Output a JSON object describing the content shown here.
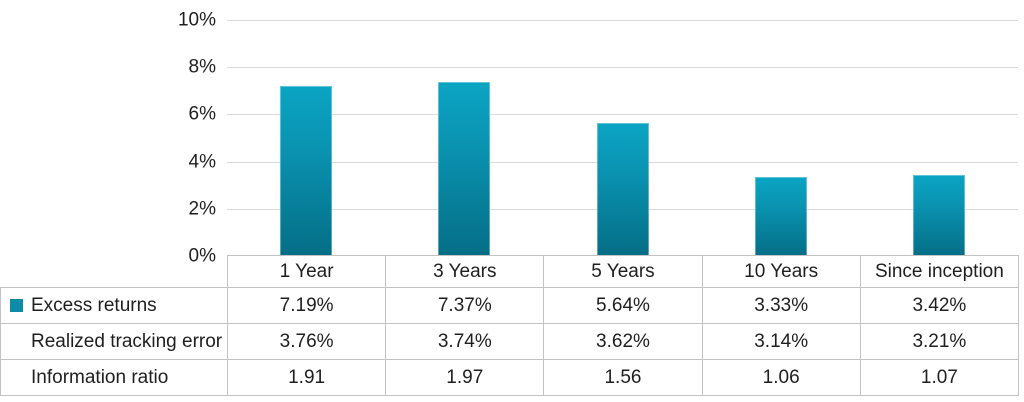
{
  "chart_data": {
    "type": "bar",
    "title": "",
    "categories": [
      "1 Year",
      "3 Years",
      "5 Years",
      "10 Years",
      "Since inception"
    ],
    "series": [
      {
        "name": "Excess returns",
        "values": [
          7.19,
          7.37,
          5.64,
          3.33,
          3.42
        ]
      }
    ],
    "xlabel": "",
    "ylabel": "",
    "ylim": [
      0,
      10
    ],
    "ytick_labels": [
      "10%",
      "8%",
      "6%",
      "4%",
      "2%",
      "0%"
    ],
    "grid": true,
    "legend_position": "table-left",
    "colors": {
      "bar_top": "#0ba4c3",
      "bar_bottom": "#056e86",
      "legend_swatch": "#0d8ca8",
      "gridline": "#d9d9d9",
      "table_border": "#c3c3c3",
      "text": "#1f1f1f"
    }
  },
  "table": {
    "column_headers": [
      "1 Year",
      "3 Years",
      "5 Years",
      "10 Years",
      "Since inception"
    ],
    "rows": [
      {
        "label": "Excess returns",
        "has_legend_marker": true,
        "values": [
          "7.19%",
          "7.37%",
          "5.64%",
          "3.33%",
          "3.42%"
        ]
      },
      {
        "label": "Realized tracking error",
        "has_legend_marker": false,
        "values": [
          "3.76%",
          "3.74%",
          "3.62%",
          "3.14%",
          "3.21%"
        ]
      },
      {
        "label": "Information ratio",
        "has_legend_marker": false,
        "values": [
          "1.91",
          "1.97",
          "1.56",
          "1.06",
          "1.07"
        ]
      }
    ]
  }
}
